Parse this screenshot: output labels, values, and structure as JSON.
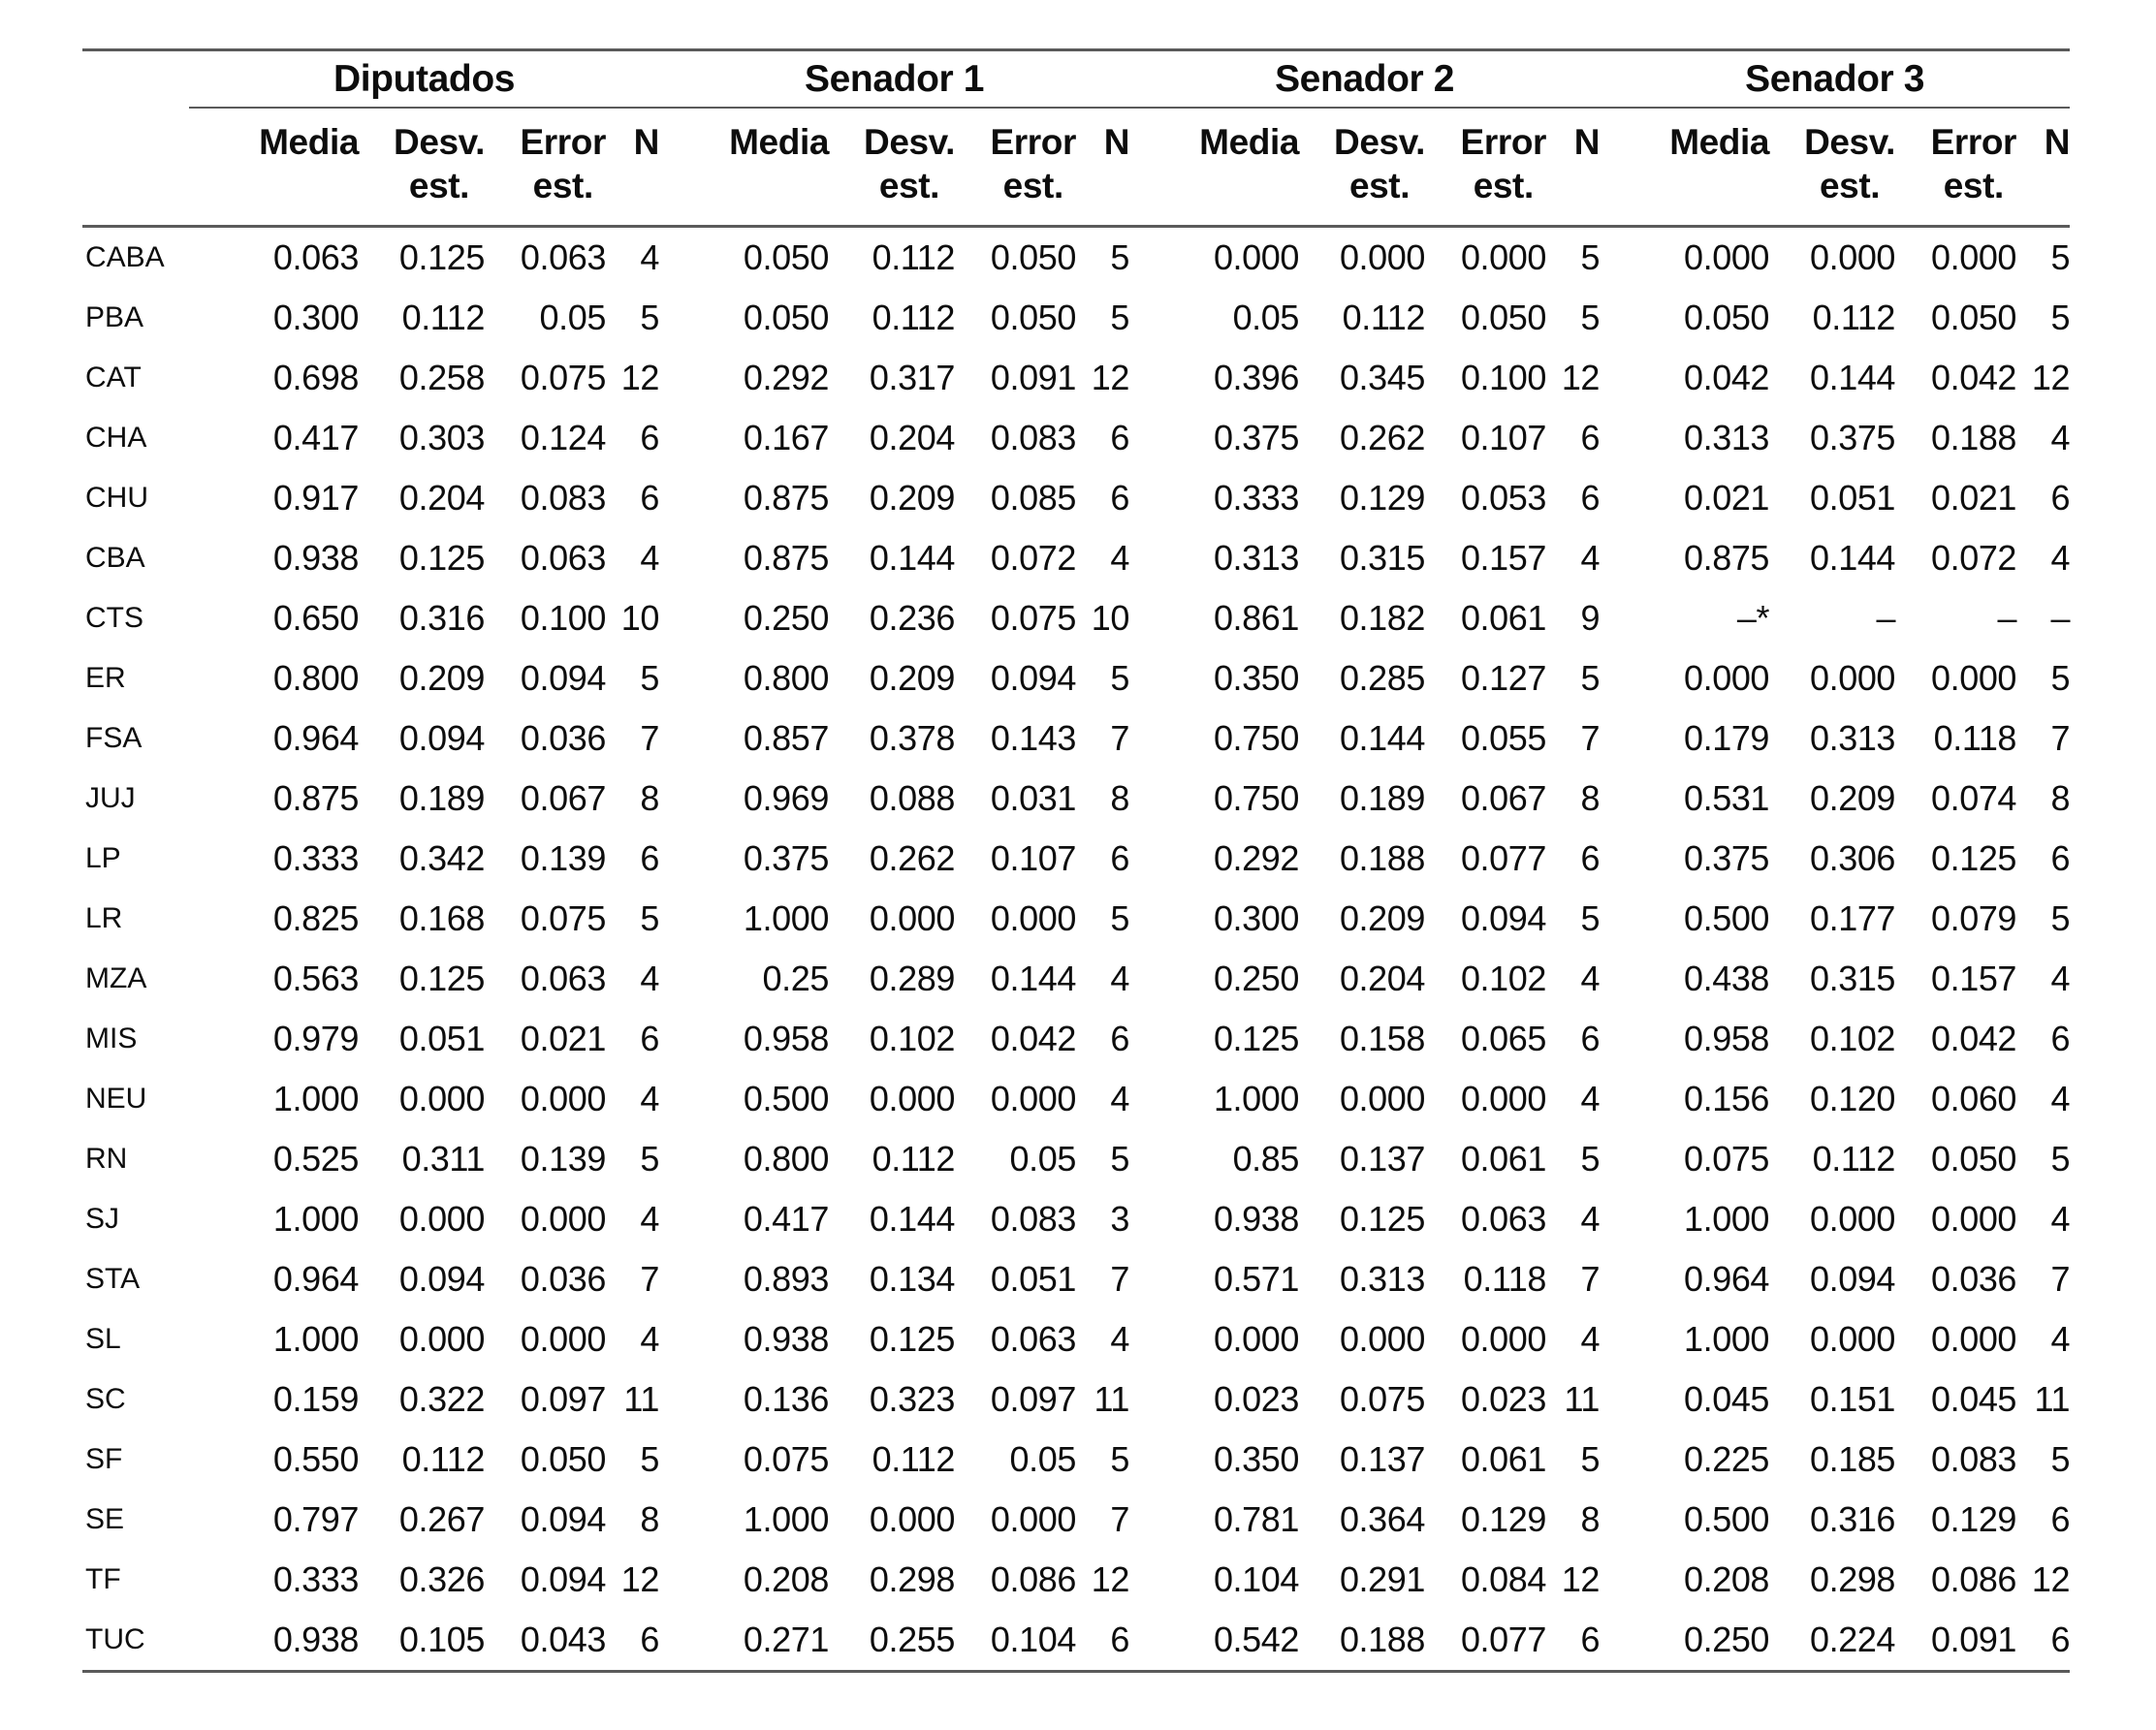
{
  "colors": {
    "text": "#0d0d0d",
    "rule": "#5a5a5a",
    "background": "#ffffff"
  },
  "table": {
    "groups": [
      {
        "label": "Diputados",
        "columns": [
          "Media",
          "Desv.\nest.",
          "Error\nest.",
          "N"
        ]
      },
      {
        "label": "Senador 1",
        "columns": [
          "Media",
          "Desv.\nest.",
          "Error\nest.",
          "N"
        ]
      },
      {
        "label": "Senador 2",
        "columns": [
          "Media",
          "Desv.\nest.",
          "Error\nest.",
          "N"
        ]
      },
      {
        "label": "Senador 3",
        "columns": [
          "Media",
          "Desv.\nest.",
          "Error\nest.",
          "N"
        ]
      }
    ],
    "rows": [
      {
        "label": "CABA",
        "values": [
          "0.063",
          "0.125",
          "0.063",
          "4",
          "0.050",
          "0.112",
          "0.050",
          "5",
          "0.000",
          "0.000",
          "0.000",
          "5",
          "0.000",
          "0.000",
          "0.000",
          "5"
        ]
      },
      {
        "label": "PBA",
        "values": [
          "0.300",
          "0.112",
          "0.05",
          "5",
          "0.050",
          "0.112",
          "0.050",
          "5",
          "0.05",
          "0.112",
          "0.050",
          "5",
          "0.050",
          "0.112",
          "0.050",
          "5"
        ]
      },
      {
        "label": "CAT",
        "values": [
          "0.698",
          "0.258",
          "0.075",
          "12",
          "0.292",
          "0.317",
          "0.091",
          "12",
          "0.396",
          "0.345",
          "0.100",
          "12",
          "0.042",
          "0.144",
          "0.042",
          "12"
        ]
      },
      {
        "label": "CHA",
        "values": [
          "0.417",
          "0.303",
          "0.124",
          "6",
          "0.167",
          "0.204",
          "0.083",
          "6",
          "0.375",
          "0.262",
          "0.107",
          "6",
          "0.313",
          "0.375",
          "0.188",
          "4"
        ]
      },
      {
        "label": "CHU",
        "values": [
          "0.917",
          "0.204",
          "0.083",
          "6",
          "0.875",
          "0.209",
          "0.085",
          "6",
          "0.333",
          "0.129",
          "0.053",
          "6",
          "0.021",
          "0.051",
          "0.021",
          "6"
        ]
      },
      {
        "label": "CBA",
        "values": [
          "0.938",
          "0.125",
          "0.063",
          "4",
          "0.875",
          "0.144",
          "0.072",
          "4",
          "0.313",
          "0.315",
          "0.157",
          "4",
          "0.875",
          "0.144",
          "0.072",
          "4"
        ]
      },
      {
        "label": "CTS",
        "values": [
          "0.650",
          "0.316",
          "0.100",
          "10",
          "0.250",
          "0.236",
          "0.075",
          "10",
          "0.861",
          "0.182",
          "0.061",
          "9",
          "–*",
          "–",
          "–",
          "–"
        ]
      },
      {
        "label": "ER",
        "values": [
          "0.800",
          "0.209",
          "0.094",
          "5",
          "0.800",
          "0.209",
          "0.094",
          "5",
          "0.350",
          "0.285",
          "0.127",
          "5",
          "0.000",
          "0.000",
          "0.000",
          "5"
        ]
      },
      {
        "label": "FSA",
        "values": [
          "0.964",
          "0.094",
          "0.036",
          "7",
          "0.857",
          "0.378",
          "0.143",
          "7",
          "0.750",
          "0.144",
          "0.055",
          "7",
          "0.179",
          "0.313",
          "0.118",
          "7"
        ]
      },
      {
        "label": "JUJ",
        "values": [
          "0.875",
          "0.189",
          "0.067",
          "8",
          "0.969",
          "0.088",
          "0.031",
          "8",
          "0.750",
          "0.189",
          "0.067",
          "8",
          "0.531",
          "0.209",
          "0.074",
          "8"
        ]
      },
      {
        "label": "LP",
        "values": [
          "0.333",
          "0.342",
          "0.139",
          "6",
          "0.375",
          "0.262",
          "0.107",
          "6",
          "0.292",
          "0.188",
          "0.077",
          "6",
          "0.375",
          "0.306",
          "0.125",
          "6"
        ]
      },
      {
        "label": "LR",
        "values": [
          "0.825",
          "0.168",
          "0.075",
          "5",
          "1.000",
          "0.000",
          "0.000",
          "5",
          "0.300",
          "0.209",
          "0.094",
          "5",
          "0.500",
          "0.177",
          "0.079",
          "5"
        ]
      },
      {
        "label": "MZA",
        "values": [
          "0.563",
          "0.125",
          "0.063",
          "4",
          "0.25",
          "0.289",
          "0.144",
          "4",
          "0.250",
          "0.204",
          "0.102",
          "4",
          "0.438",
          "0.315",
          "0.157",
          "4"
        ]
      },
      {
        "label": "MIS",
        "values": [
          "0.979",
          "0.051",
          "0.021",
          "6",
          "0.958",
          "0.102",
          "0.042",
          "6",
          "0.125",
          "0.158",
          "0.065",
          "6",
          "0.958",
          "0.102",
          "0.042",
          "6"
        ]
      },
      {
        "label": "NEU",
        "values": [
          "1.000",
          "0.000",
          "0.000",
          "4",
          "0.500",
          "0.000",
          "0.000",
          "4",
          "1.000",
          "0.000",
          "0.000",
          "4",
          "0.156",
          "0.120",
          "0.060",
          "4"
        ]
      },
      {
        "label": "RN",
        "values": [
          "0.525",
          "0.311",
          "0.139",
          "5",
          "0.800",
          "0.112",
          "0.05",
          "5",
          "0.85",
          "0.137",
          "0.061",
          "5",
          "0.075",
          "0.112",
          "0.050",
          "5"
        ]
      },
      {
        "label": "SJ",
        "values": [
          "1.000",
          "0.000",
          "0.000",
          "4",
          "0.417",
          "0.144",
          "0.083",
          "3",
          "0.938",
          "0.125",
          "0.063",
          "4",
          "1.000",
          "0.000",
          "0.000",
          "4"
        ]
      },
      {
        "label": "STA",
        "values": [
          "0.964",
          "0.094",
          "0.036",
          "7",
          "0.893",
          "0.134",
          "0.051",
          "7",
          "0.571",
          "0.313",
          "0.118",
          "7",
          "0.964",
          "0.094",
          "0.036",
          "7"
        ]
      },
      {
        "label": "SL",
        "values": [
          "1.000",
          "0.000",
          "0.000",
          "4",
          "0.938",
          "0.125",
          "0.063",
          "4",
          "0.000",
          "0.000",
          "0.000",
          "4",
          "1.000",
          "0.000",
          "0.000",
          "4"
        ]
      },
      {
        "label": "SC",
        "values": [
          "0.159",
          "0.322",
          "0.097",
          "11",
          "0.136",
          "0.323",
          "0.097",
          "11",
          "0.023",
          "0.075",
          "0.023",
          "11",
          "0.045",
          "0.151",
          "0.045",
          "11"
        ]
      },
      {
        "label": "SF",
        "values": [
          "0.550",
          "0.112",
          "0.050",
          "5",
          "0.075",
          "0.112",
          "0.05",
          "5",
          "0.350",
          "0.137",
          "0.061",
          "5",
          "0.225",
          "0.185",
          "0.083",
          "5"
        ]
      },
      {
        "label": "SE",
        "values": [
          "0.797",
          "0.267",
          "0.094",
          "8",
          "1.000",
          "0.000",
          "0.000",
          "7",
          "0.781",
          "0.364",
          "0.129",
          "8",
          "0.500",
          "0.316",
          "0.129",
          "6"
        ]
      },
      {
        "label": "TF",
        "values": [
          "0.333",
          "0.326",
          "0.094",
          "12",
          "0.208",
          "0.298",
          "0.086",
          "12",
          "0.104",
          "0.291",
          "0.084",
          "12",
          "0.208",
          "0.298",
          "0.086",
          "12"
        ]
      },
      {
        "label": "TUC",
        "values": [
          "0.938",
          "0.105",
          "0.043",
          "6",
          "0.271",
          "0.255",
          "0.104",
          "6",
          "0.542",
          "0.188",
          "0.077",
          "6",
          "0.250",
          "0.224",
          "0.091",
          "6"
        ]
      }
    ]
  }
}
